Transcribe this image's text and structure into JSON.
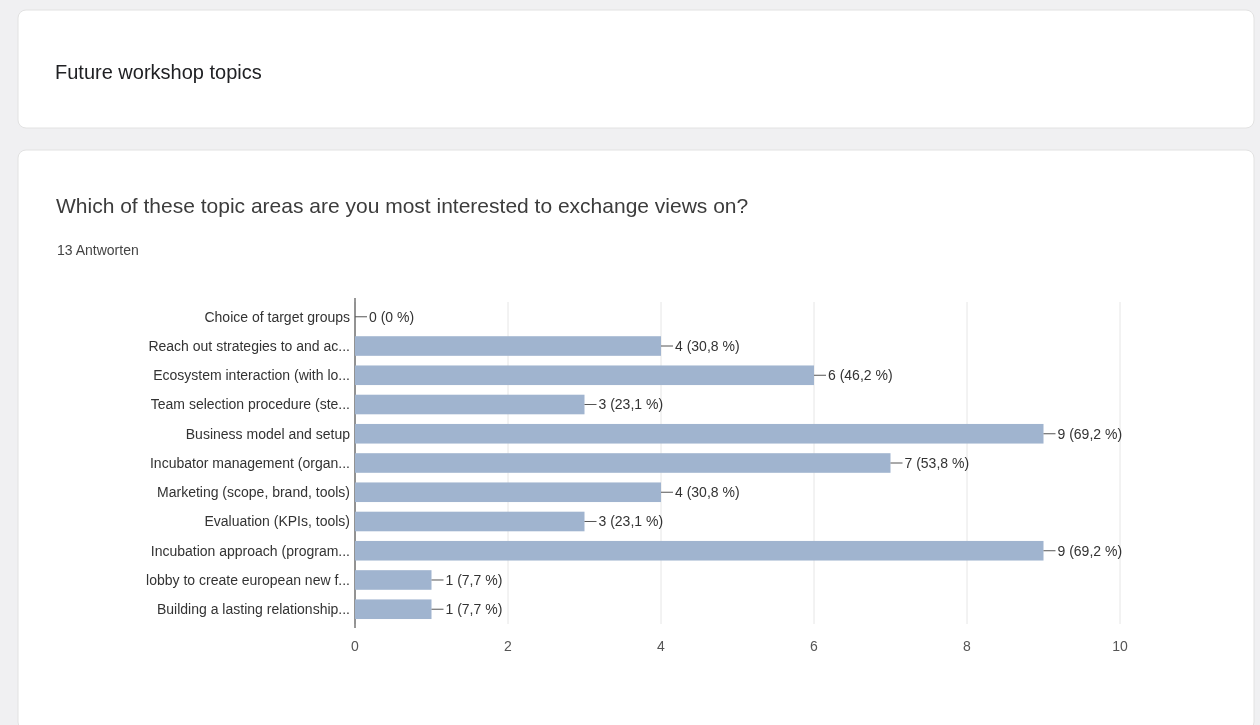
{
  "chart_data": {
    "type": "bar",
    "orientation": "horizontal",
    "title": "Future workshop topics",
    "subtitle": "Which of these topic areas are you most interested to exchange views on?",
    "annotations": [
      "13 Antworten"
    ],
    "categories": [
      "Choice of target groups",
      "Reach out strategies to and ac...",
      "Ecosystem interaction (with lo...",
      "Team selection procedure (ste...",
      "Business model and setup",
      "Incubator management (organ...",
      "Marketing (scope, brand, tools)",
      "Evaluation (KPIs, tools)",
      "Incubation approach (program...",
      "lobby to create european new f...",
      "Building a lasting relationship..."
    ],
    "values": [
      0,
      4,
      6,
      3,
      9,
      7,
      4,
      3,
      9,
      1,
      1
    ],
    "value_labels": [
      "0 (0 %)",
      "4 (30,8 %)",
      "6 (46,2 %)",
      "3 (23,1 %)",
      "9 (69,2 %)",
      "7 (53,8 %)",
      "4 (30,8 %)",
      "3 (23,1 %)",
      "9 (69,2 %)",
      "1 (7,7 %)",
      "1 (7,7 %)"
    ],
    "color": "#a0b4cf",
    "xlim": [
      0,
      10
    ],
    "xticks": [
      0,
      2,
      4,
      6,
      8,
      10
    ],
    "grid": "x"
  }
}
